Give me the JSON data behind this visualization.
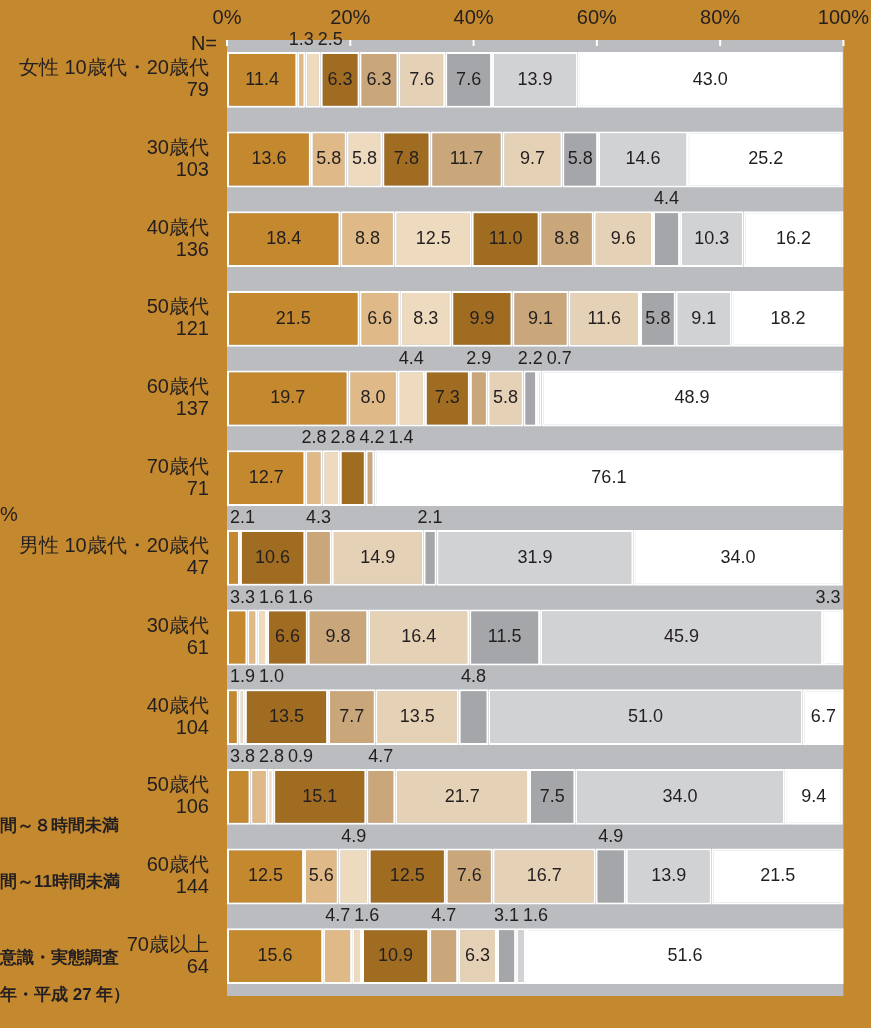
{
  "chart_data": {
    "type": "bar",
    "orientation": "horizontal",
    "stacked": true,
    "categories": [
      "女性 10歳代・20歳代\n79",
      "30歳代\n103",
      "40歳代\n136",
      "50歳代\n121",
      "60歳代\n137",
      "70歳代\n71",
      "男性 10歳代・20歳代\n47",
      "30歳代\n61",
      "40歳代\n104",
      "50歳代\n106",
      "60歳代\n144",
      "70歳以上\n64"
    ],
    "xlim": [
      0,
      100
    ],
    "xticks": [
      {
        "value": 0,
        "label": "0%"
      },
      {
        "value": 20,
        "label": "20%"
      },
      {
        "value": 40,
        "label": "40%"
      },
      {
        "value": 60,
        "label": "60%"
      },
      {
        "value": 80,
        "label": "80%"
      },
      {
        "value": 100,
        "label": "100%"
      }
    ],
    "annotations": [
      "N=",
      "%",
      "間～８時間未満",
      "間～11時間未満",
      "意識・実態調査",
      "年・平成 27 年）"
    ],
    "series": [
      {
        "color": "#c4882e",
        "values": [
          11.4,
          13.6,
          18.4,
          21.5,
          19.7,
          12.7,
          2.1,
          3.3,
          1.9,
          3.8,
          12.5,
          15.6
        ],
        "value_labels": [
          "11.4",
          "13.6",
          "18.4",
          "21.5",
          "19.7",
          "12.7",
          "2.1",
          "3.3",
          "1.9",
          "3.8",
          "12.5",
          "15.6"
        ]
      },
      {
        "color": "#dfb987",
        "values": [
          1.3,
          5.8,
          8.8,
          6.6,
          8.0,
          2.8,
          null,
          1.6,
          null,
          2.8,
          5.6,
          4.7
        ],
        "value_labels": [
          "1.3",
          "5.8",
          "8.8",
          "6.6",
          "8.0",
          "2.8",
          null,
          "1.6",
          null,
          "2.8",
          "5.6",
          "4.7"
        ]
      },
      {
        "color": "#eedbbf",
        "values": [
          2.5,
          5.8,
          12.5,
          8.3,
          4.4,
          2.8,
          null,
          1.6,
          1.0,
          0.9,
          4.9,
          1.6
        ],
        "value_labels": [
          "2.5",
          "5.8",
          "12.5",
          "8.3",
          "4.4",
          "2.8",
          null,
          "1.6",
          "1.0",
          "0.9",
          "4.9",
          "1.6"
        ]
      },
      {
        "color": "#a06c22",
        "values": [
          6.3,
          7.8,
          11.0,
          9.9,
          7.3,
          4.2,
          10.6,
          6.6,
          13.5,
          15.1,
          12.5,
          10.9
        ],
        "value_labels": [
          "6.3",
          "7.8",
          "11.0",
          "9.9",
          "7.3",
          "4.2",
          "10.6",
          "6.6",
          "13.5",
          "15.1",
          "12.5",
          "10.9"
        ]
      },
      {
        "color": "#c9a77a",
        "values": [
          6.3,
          11.7,
          8.8,
          9.1,
          2.9,
          1.4,
          4.3,
          9.8,
          7.7,
          4.7,
          7.6,
          4.7
        ],
        "value_labels": [
          "6.3",
          "11.7",
          "8.8",
          "9.1",
          "2.9",
          "1.4",
          "4.3",
          "9.8",
          "7.7",
          "4.7",
          "7.6",
          "4.7"
        ]
      },
      {
        "color": "#e5d1b6",
        "values": [
          7.6,
          9.7,
          9.6,
          11.6,
          5.8,
          null,
          14.9,
          16.4,
          13.5,
          21.7,
          16.7,
          6.3
        ],
        "value_labels": [
          "7.6",
          "9.7",
          "9.6",
          "11.6",
          "5.8",
          null,
          "14.9",
          "16.4",
          "13.5",
          "21.7",
          "16.7",
          "6.3"
        ]
      },
      {
        "color": "#a5a6aa",
        "values": [
          7.6,
          5.8,
          4.4,
          5.8,
          2.2,
          null,
          2.1,
          11.5,
          4.8,
          7.5,
          4.9,
          3.1
        ],
        "value_labels": [
          "7.6",
          "5.8",
          "4.4",
          "5.8",
          "2.2",
          null,
          "2.1",
          "11.5",
          "4.8",
          "7.5",
          "4.9",
          "3.1"
        ]
      },
      {
        "color": "#d1d2d4",
        "values": [
          13.9,
          14.6,
          10.3,
          9.1,
          0.7,
          null,
          31.9,
          45.9,
          51.0,
          34.0,
          13.9,
          1.6
        ],
        "value_labels": [
          "13.9",
          "14.6",
          "10.3",
          "9.1",
          "0.7",
          null,
          "31.9",
          "45.9",
          "51.0",
          "34.0",
          "13.9",
          "1.6"
        ]
      },
      {
        "color": "#ffffff",
        "values": [
          43.0,
          25.2,
          16.2,
          18.2,
          48.9,
          76.1,
          34.0,
          3.3,
          6.7,
          9.4,
          21.5,
          51.6
        ],
        "value_labels": [
          "43.0",
          "25.2",
          "16.2",
          "18.2",
          "48.9",
          "76.1",
          "34.0",
          "3.3",
          "6.7",
          "9.4",
          "21.5",
          "51.6"
        ]
      }
    ]
  }
}
